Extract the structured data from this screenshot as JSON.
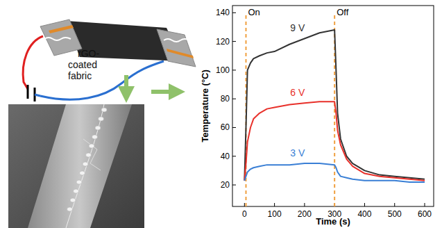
{
  "chart_data": {
    "type": "line",
    "x_label": "Time (s)",
    "y_label": "Temperature (°C)",
    "x": [
      0,
      5,
      10,
      20,
      30,
      50,
      75,
      100,
      150,
      200,
      250,
      300,
      305,
      310,
      320,
      340,
      360,
      400,
      450,
      500,
      550,
      600
    ],
    "series": [
      {
        "name": "9 V",
        "color": "#333333",
        "values": [
          23,
          60,
          100,
          105,
          108,
          110,
          112,
          113,
          118,
          122,
          126,
          128,
          100,
          70,
          52,
          40,
          35,
          30,
          27,
          26,
          25,
          24
        ]
      },
      {
        "name": "6 V",
        "color": "#e8302a",
        "values": [
          23,
          35,
          50,
          60,
          66,
          70,
          73,
          74,
          76,
          77,
          78,
          78,
          70,
          58,
          48,
          38,
          33,
          28,
          26,
          25,
          24,
          23
        ]
      },
      {
        "name": "3 V",
        "color": "#3a7fd5",
        "values": [
          23,
          26,
          29,
          31,
          32,
          33,
          34,
          34,
          34,
          35,
          35,
          34,
          32,
          29,
          26,
          25,
          24,
          23,
          23,
          23,
          22,
          22
        ]
      }
    ],
    "annotations": [
      {
        "text": "On",
        "x": 5
      },
      {
        "text": "Off",
        "x": 300
      }
    ],
    "xlim": [
      -40,
      630
    ],
    "xticks": [
      0,
      100,
      200,
      300,
      400,
      500,
      600
    ],
    "ylim": [
      5,
      145
    ],
    "yticks": [
      20,
      40,
      60,
      80,
      100,
      120,
      140
    ],
    "grid": false
  },
  "diagram": {
    "label": "rGO-coated fabric"
  }
}
